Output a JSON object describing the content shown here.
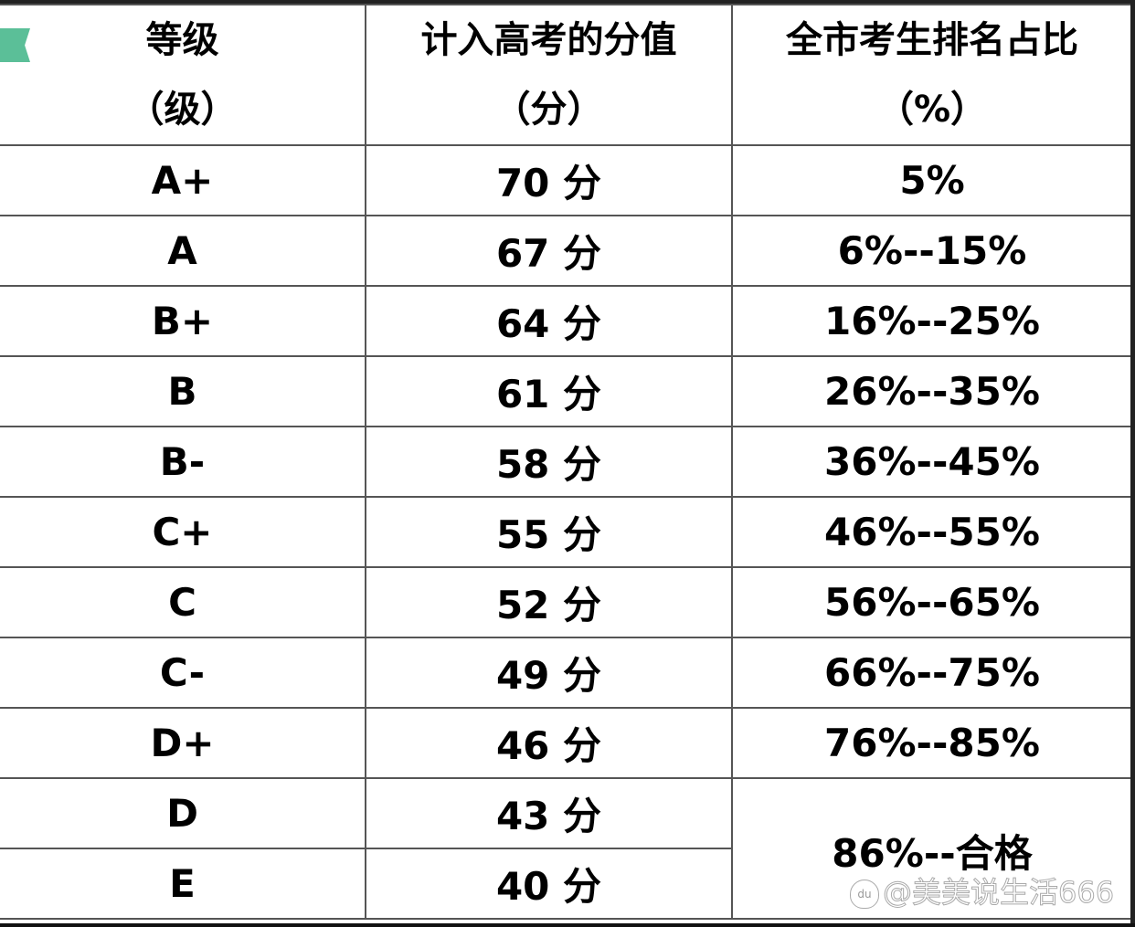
{
  "table": {
    "headers": [
      {
        "line1": "等级",
        "line2": "（级）"
      },
      {
        "line1": "计入高考的分值",
        "line2": "（分）"
      },
      {
        "line1": "全市考生排名占比",
        "line2": "（%）"
      }
    ],
    "rows": [
      {
        "grade": "A+",
        "score": "70 分",
        "rank": "5%"
      },
      {
        "grade": "A",
        "score": "67 分",
        "rank": "6%--15%"
      },
      {
        "grade": "B+",
        "score": "64 分",
        "rank": "16%--25%"
      },
      {
        "grade": "B",
        "score": "61 分",
        "rank": "26%--35%"
      },
      {
        "grade": "B-",
        "score": "58 分",
        "rank": "36%--45%"
      },
      {
        "grade": "C+",
        "score": "55 分",
        "rank": "46%--55%"
      },
      {
        "grade": "C",
        "score": "52 分",
        "rank": "56%--65%"
      },
      {
        "grade": "C-",
        "score": "49 分",
        "rank": "66%--75%"
      },
      {
        "grade": "D+",
        "score": "46 分",
        "rank": "76%--85%"
      },
      {
        "grade": "D",
        "score": "43 分"
      },
      {
        "grade": "E",
        "score": "40 分"
      }
    ],
    "merged_rank": "86%--合格"
  },
  "watermark": {
    "logo": "du",
    "text": "@美美说生活666"
  },
  "colors": {
    "tag": "#5bbf98",
    "border": "#555555"
  }
}
